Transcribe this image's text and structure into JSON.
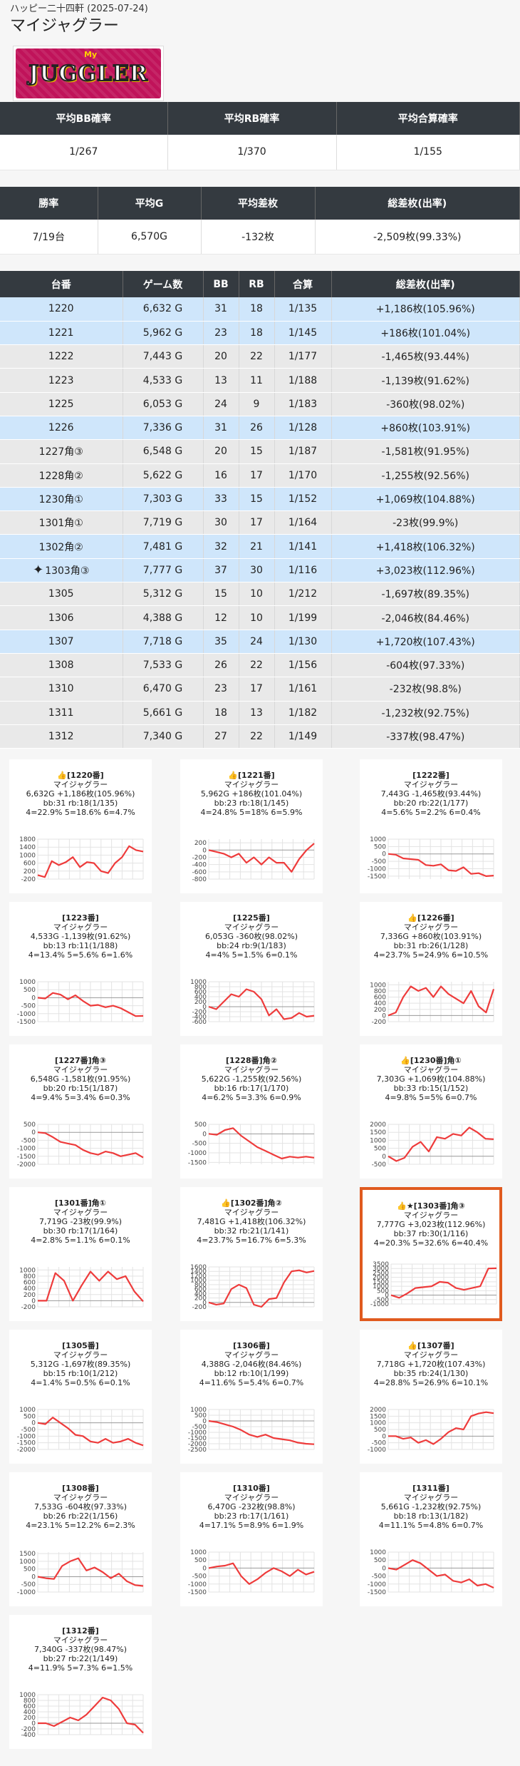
{
  "header": {
    "subtitle": "ハッピー二十四軒 (2025-07-24)",
    "title": "マイジャグラー",
    "logo_text": "JUGGLER",
    "logo_my": "My"
  },
  "summary1": {
    "headers": [
      "平均BB確率",
      "平均RB確率",
      "平均合算確率"
    ],
    "values": [
      "1/267",
      "1/370",
      "1/155"
    ]
  },
  "summary2": {
    "headers": [
      "勝率",
      "平均G",
      "平均差枚",
      "総差枚(出率)"
    ],
    "values": [
      "7/19台",
      "6,570G",
      "-132枚",
      "-2,509枚(99.33%)"
    ]
  },
  "machines": {
    "headers": [
      "台番",
      "ゲーム数",
      "BB",
      "RB",
      "合算",
      "総差枚(出率)"
    ],
    "rows": [
      {
        "no": "1220",
        "games": "6,632 G",
        "bb": "31",
        "rb": "18",
        "total": "1/135",
        "diff": "+1,186枚(105.96%)",
        "type": "plus"
      },
      {
        "no": "1221",
        "games": "5,962 G",
        "bb": "23",
        "rb": "18",
        "total": "1/145",
        "diff": "+186枚(101.04%)",
        "type": "plus"
      },
      {
        "no": "1222",
        "games": "7,443 G",
        "bb": "20",
        "rb": "22",
        "total": "1/177",
        "diff": "-1,465枚(93.44%)",
        "type": "minus"
      },
      {
        "no": "1223",
        "games": "4,533 G",
        "bb": "13",
        "rb": "11",
        "total": "1/188",
        "diff": "-1,139枚(91.62%)",
        "type": "minus"
      },
      {
        "no": "1225",
        "games": "6,053 G",
        "bb": "24",
        "rb": "9",
        "total": "1/183",
        "diff": "-360枚(98.02%)",
        "type": "minus"
      },
      {
        "no": "1226",
        "games": "7,336 G",
        "bb": "31",
        "rb": "26",
        "total": "1/128",
        "diff": "+860枚(103.91%)",
        "type": "plus"
      },
      {
        "no": "1227角③",
        "games": "6,548 G",
        "bb": "20",
        "rb": "15",
        "total": "1/187",
        "diff": "-1,581枚(91.95%)",
        "type": "minus"
      },
      {
        "no": "1228角②",
        "games": "5,622 G",
        "bb": "16",
        "rb": "17",
        "total": "1/170",
        "diff": "-1,255枚(92.56%)",
        "type": "minus"
      },
      {
        "no": "1230角①",
        "games": "7,303 G",
        "bb": "33",
        "rb": "15",
        "total": "1/152",
        "diff": "+1,069枚(104.88%)",
        "type": "plus"
      },
      {
        "no": "1301角①",
        "games": "7,719 G",
        "bb": "30",
        "rb": "17",
        "total": "1/164",
        "diff": "-23枚(99.9%)",
        "type": "minus"
      },
      {
        "no": "1302角②",
        "games": "7,481 G",
        "bb": "32",
        "rb": "21",
        "total": "1/141",
        "diff": "+1,418枚(106.32%)",
        "type": "plus"
      },
      {
        "no": "1303角③",
        "games": "7,777 G",
        "bb": "37",
        "rb": "30",
        "total": "1/116",
        "diff": "+3,023枚(112.96%)",
        "type": "plus",
        "spark": "✦"
      },
      {
        "no": "1305",
        "games": "5,312 G",
        "bb": "15",
        "rb": "10",
        "total": "1/212",
        "diff": "-1,697枚(89.35%)",
        "type": "minus"
      },
      {
        "no": "1306",
        "games": "4,388 G",
        "bb": "12",
        "rb": "10",
        "total": "1/199",
        "diff": "-2,046枚(84.46%)",
        "type": "minus"
      },
      {
        "no": "1307",
        "games": "7,718 G",
        "bb": "35",
        "rb": "24",
        "total": "1/130",
        "diff": "+1,720枚(107.43%)",
        "type": "plus"
      },
      {
        "no": "1308",
        "games": "7,533 G",
        "bb": "26",
        "rb": "22",
        "total": "1/156",
        "diff": "-604枚(97.33%)",
        "type": "minus"
      },
      {
        "no": "1310",
        "games": "6,470 G",
        "bb": "23",
        "rb": "17",
        "total": "1/161",
        "diff": "-232枚(98.8%)",
        "type": "minus"
      },
      {
        "no": "1311",
        "games": "5,661 G",
        "bb": "18",
        "rb": "13",
        "total": "1/182",
        "diff": "-1,232枚(92.75%)",
        "type": "minus"
      },
      {
        "no": "1312",
        "games": "7,340 G",
        "bb": "27",
        "rb": "22",
        "total": "1/149",
        "diff": "-337枚(98.47%)",
        "type": "minus"
      }
    ]
  },
  "cards": [
    {
      "title": "👍[1220番]",
      "model": "マイジャグラー",
      "l1": "6,632G +1,186枚(105.96%)",
      "l2": "bb:31 rb:18(1/135)",
      "l3": "4=22.9% 5=18.6% 6=4.7%",
      "yticks": [
        1800,
        1400,
        1000,
        600,
        200,
        -200
      ],
      "ymin": -200,
      "ymax": 1800,
      "values": [
        0,
        -100,
        700,
        500,
        650,
        900,
        400,
        650,
        600,
        200,
        100,
        600,
        900,
        1450,
        1250,
        1180
      ]
    },
    {
      "title": "👍[1221番]",
      "model": "マイジャグラー",
      "l1": "5,962G +186枚(101.04%)",
      "l2": "bb:23 rb:18(1/145)",
      "l3": "4=24.8% 5=18% 6=5.9%",
      "yticks": [
        200,
        0,
        -200,
        -400,
        -600,
        -800
      ],
      "ymin": -800,
      "ymax": 300,
      "values": [
        0,
        -50,
        -100,
        -200,
        -100,
        -350,
        -200,
        -400,
        -200,
        -350,
        -350,
        -600,
        -250,
        0,
        180
      ]
    },
    {
      "title": "[1222番]",
      "model": "マイジャグラー",
      "l1": "7,443G -1,465枚(93.44%)",
      "l2": "bb:20 rb:22(1/177)",
      "l3": "4=5.6% 5=2.2% 6=0.4%",
      "yticks": [
        1000,
        500,
        0,
        -500,
        -1000,
        -1500
      ],
      "ymin": -1700,
      "ymax": 1000,
      "values": [
        0,
        -50,
        -300,
        -350,
        -400,
        -750,
        -800,
        -700,
        -1100,
        -1150,
        -900,
        -1350,
        -1300,
        -1500,
        -1465
      ]
    },
    {
      "title": "[1223番]",
      "model": "マイジャグラー",
      "l1": "4,533G -1,139枚(91.62%)",
      "l2": "bb:13 rb:11(1/188)",
      "l3": "4=13.4% 5=5.6% 6=1.6%",
      "yticks": [
        1000,
        500,
        0,
        -500,
        -1000,
        -1500
      ],
      "ymin": -1500,
      "ymax": 1000,
      "values": [
        0,
        -50,
        300,
        200,
        -100,
        150,
        -200,
        -500,
        -450,
        -600,
        -500,
        -650,
        -900,
        -1150,
        -1139
      ]
    },
    {
      "title": "[1225番]",
      "model": "マイジャグラー",
      "l1": "6,053G -360枚(98.02%)",
      "l2": "bb:24 rb:9(1/183)",
      "l3": "4=4% 5=1.5% 6=0.1%",
      "yticks": [
        1000,
        800,
        600,
        400,
        200,
        0,
        -200,
        -400,
        -600
      ],
      "ymin": -600,
      "ymax": 1000,
      "values": [
        0,
        -100,
        200,
        500,
        400,
        700,
        600,
        300,
        -350,
        -100,
        -500,
        -450,
        -250,
        -400,
        -360
      ]
    },
    {
      "title": "👍[1226番]",
      "model": "マイジャグラー",
      "l1": "7,336G +860枚(103.91%)",
      "l2": "bb:31 rb:26(1/128)",
      "l3": "4=23.7% 5=24.9% 6=10.5%",
      "yticks": [
        1000,
        800,
        600,
        400,
        200,
        0,
        -200
      ],
      "ymin": -200,
      "ymax": 1100,
      "values": [
        0,
        100,
        600,
        950,
        800,
        900,
        600,
        950,
        700,
        550,
        400,
        800,
        300,
        100,
        860
      ]
    },
    {
      "title": "[1227番]角③",
      "model": "マイジャグラー",
      "l1": "6,548G -1,581枚(91.95%)",
      "l2": "bb:20 rb:15(1/187)",
      "l3": "4=9.4% 5=3.4% 6=0.3%",
      "yticks": [
        500,
        0,
        -500,
        -1000,
        -1500,
        -2000
      ],
      "ymin": -2000,
      "ymax": 500,
      "values": [
        0,
        -50,
        -300,
        -600,
        -700,
        -800,
        -1100,
        -1300,
        -1400,
        -1200,
        -1300,
        -1500,
        -1400,
        -1300,
        -1581
      ]
    },
    {
      "title": "[1228番]角②",
      "model": "マイジャグラー",
      "l1": "5,622G -1,255枚(92.56%)",
      "l2": "bb:16 rb:17(1/170)",
      "l3": "4=6.2% 5=3.3% 6=0.9%",
      "yticks": [
        500,
        0,
        -500,
        -1000,
        -1500
      ],
      "ymin": -1600,
      "ymax": 500,
      "values": [
        0,
        -50,
        200,
        300,
        -100,
        -400,
        -700,
        -900,
        -1100,
        -1300,
        -1200,
        -1250,
        -1200,
        -1255
      ]
    },
    {
      "title": "👍[1230番]角①",
      "model": "マイジャグラー",
      "l1": "7,303G +1,069枚(104.88%)",
      "l2": "bb:33 rb:15(1/152)",
      "l3": "4=9.8% 5=5% 6=0.7%",
      "yticks": [
        2000,
        1500,
        1000,
        500,
        0,
        -500
      ],
      "ymin": -500,
      "ymax": 2000,
      "values": [
        0,
        -300,
        -100,
        600,
        900,
        300,
        1200,
        1100,
        1400,
        1300,
        1800,
        1500,
        1100,
        1069
      ]
    },
    {
      "title": "[1301番]角①",
      "model": "マイジャグラー",
      "l1": "7,719G -23枚(99.9%)",
      "l2": "bb:30 rb:17(1/164)",
      "l3": "4=2.8% 5=1.1% 6=0.1%",
      "yticks": [
        1000,
        800,
        600,
        400,
        200,
        0,
        -200
      ],
      "ymin": -200,
      "ymax": 1100,
      "values": [
        0,
        0,
        900,
        650,
        0,
        500,
        950,
        650,
        950,
        700,
        800,
        300,
        -23
      ]
    },
    {
      "title": "👍[1302番]角②",
      "model": "マイジャグラー",
      "l1": "7,481G +1,418枚(106.32%)",
      "l2": "bb:32 rb:21(1/141)",
      "l3": "4=23.7% 5=16.7% 6=5.3%",
      "yticks": [
        1600,
        1400,
        1200,
        1000,
        800,
        600,
        400,
        200,
        0,
        -200
      ],
      "ymin": -200,
      "ymax": 1600,
      "values": [
        0,
        -100,
        -50,
        600,
        800,
        650,
        -100,
        -200,
        150,
        200,
        900,
        1400,
        1450,
        1350,
        1418
      ]
    },
    {
      "title": "👍★[1303番]角③",
      "model": "マイジャグラー",
      "l1": "7,777G +3,023枚(112.96%)",
      "l2": "bb:37 rb:30(1/116)",
      "l3": "4=20.3% 5=32.6% 6=40.4%",
      "yticks": [
        3500,
        3000,
        2500,
        2000,
        1500,
        1000,
        500,
        0,
        -500,
        -1000
      ],
      "ymin": -1000,
      "ymax": 3500,
      "values": [
        0,
        -300,
        200,
        800,
        900,
        1000,
        1500,
        1400,
        800,
        600,
        800,
        1000,
        3000,
        3023
      ],
      "highlight": true
    },
    {
      "title": "[1305番]",
      "model": "マイジャグラー",
      "l1": "5,312G -1,697枚(89.35%)",
      "l2": "bb:15 rb:10(1/212)",
      "l3": "4=1.4% 5=0.5% 6=0.1%",
      "yticks": [
        1000,
        500,
        0,
        -500,
        -1000,
        -1500,
        -2000
      ],
      "ymin": -2000,
      "ymax": 1000,
      "values": [
        0,
        -100,
        400,
        0,
        -400,
        -900,
        -1000,
        -1400,
        -1500,
        -1200,
        -1500,
        -1400,
        -1200,
        -1500,
        -1697
      ]
    },
    {
      "title": "[1306番]",
      "model": "マイジャグラー",
      "l1": "4,388G -2,046枚(84.46%)",
      "l2": "bb:12 rb:10(1/199)",
      "l3": "4=11.6% 5=5.4% 6=0.7%",
      "yticks": [
        1000,
        500,
        0,
        -500,
        -1000,
        -1500,
        -2000,
        -2500
      ],
      "ymin": -2500,
      "ymax": 1000,
      "values": [
        0,
        -100,
        -300,
        -500,
        -800,
        -1200,
        -1400,
        -1200,
        -1500,
        -1600,
        -1700,
        -1900,
        -2000,
        -2046
      ]
    },
    {
      "title": "👍[1307番]",
      "model": "マイジャグラー",
      "l1": "7,718G +1,720枚(107.43%)",
      "l2": "bb:35 rb:24(1/130)",
      "l3": "4=28.8% 5=26.9% 6=10.1%",
      "yticks": [
        2000,
        1500,
        1000,
        500,
        0,
        -500,
        -1000
      ],
      "ymin": -1000,
      "ymax": 2000,
      "values": [
        0,
        0,
        -200,
        -100,
        -500,
        -300,
        -600,
        -200,
        300,
        600,
        500,
        1500,
        1700,
        1800,
        1720
      ]
    },
    {
      "title": "[1308番]",
      "model": "マイジャグラー",
      "l1": "7,533G -604枚(97.33%)",
      "l2": "bb:26 rb:22(1/156)",
      "l3": "4=23.1% 5=12.2% 6=2.3%",
      "yticks": [
        1500,
        1000,
        500,
        0,
        -500,
        -1000
      ],
      "ymin": -1000,
      "ymax": 1600,
      "values": [
        0,
        -100,
        -150,
        700,
        1000,
        1200,
        400,
        600,
        300,
        -100,
        200,
        -300,
        -550,
        -604
      ]
    },
    {
      "title": "[1310番]",
      "model": "マイジャグラー",
      "l1": "6,470G -232枚(98.8%)",
      "l2": "bb:23 rb:17(1/161)",
      "l3": "4=17.1% 5=8.9% 6=1.9%",
      "yticks": [
        1000,
        500,
        0,
        -500,
        -1000,
        -1500
      ],
      "ymin": -1500,
      "ymax": 1000,
      "values": [
        0,
        100,
        150,
        300,
        -500,
        -1000,
        -700,
        -300,
        0,
        -200,
        -500,
        -100,
        -400,
        -232
      ]
    },
    {
      "title": "[1311番]",
      "model": "マイジャグラー",
      "l1": "5,661G -1,232枚(92.75%)",
      "l2": "bb:18 rb:13(1/182)",
      "l3": "4=11.1% 5=4.8% 6=0.7%",
      "yticks": [
        1000,
        500,
        0,
        -500,
        -1000,
        -1500
      ],
      "ymin": -1500,
      "ymax": 1000,
      "values": [
        0,
        -100,
        200,
        500,
        300,
        -100,
        -500,
        -400,
        -800,
        -900,
        -700,
        -1100,
        -1000,
        -1232
      ]
    },
    {
      "title": "[1312番]",
      "model": "マイジャグラー",
      "l1": "7,340G -337枚(98.47%)",
      "l2": "bb:27 rb:22(1/149)",
      "l3": "4=11.9% 5=7.3% 6=1.5%",
      "yticks": [
        1000,
        800,
        600,
        400,
        200,
        0,
        -200,
        -400
      ],
      "ymin": -400,
      "ymax": 1000,
      "values": [
        0,
        0,
        -100,
        50,
        200,
        100,
        300,
        600,
        900,
        800,
        500,
        0,
        -50,
        -337
      ]
    }
  ]
}
